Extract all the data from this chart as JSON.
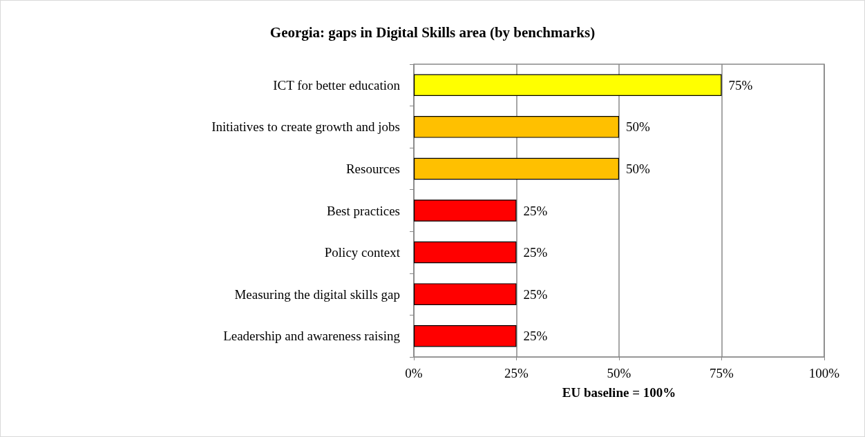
{
  "chart_data": {
    "type": "bar",
    "orientation": "horizontal",
    "title": "Georgia: gaps in Digital Skills area (by benchmarks)",
    "xlabel": "EU baseline = 100%",
    "categories": [
      "ICT for better education",
      "Initiatives to create growth and jobs",
      "Resources",
      "Best practices",
      "Policy context",
      "Measuring the digital skills gap",
      "Leadership and awareness raising"
    ],
    "values": [
      75,
      50,
      50,
      25,
      25,
      25,
      25
    ],
    "colors": [
      "#ffff00",
      "#ffc000",
      "#ffc000",
      "#ff0000",
      "#ff0000",
      "#ff0000",
      "#ff0000"
    ],
    "value_labels": [
      "75%",
      "50%",
      "50%",
      "25%",
      "25%",
      "25%",
      "25%"
    ],
    "xlim": [
      0,
      100
    ],
    "xticks": [
      {
        "value": 0,
        "label": "0%"
      },
      {
        "value": 25,
        "label": "25%"
      },
      {
        "value": 50,
        "label": "50%"
      },
      {
        "value": 75,
        "label": "75%"
      },
      {
        "value": 100,
        "label": "100%"
      }
    ],
    "grid": "x"
  }
}
